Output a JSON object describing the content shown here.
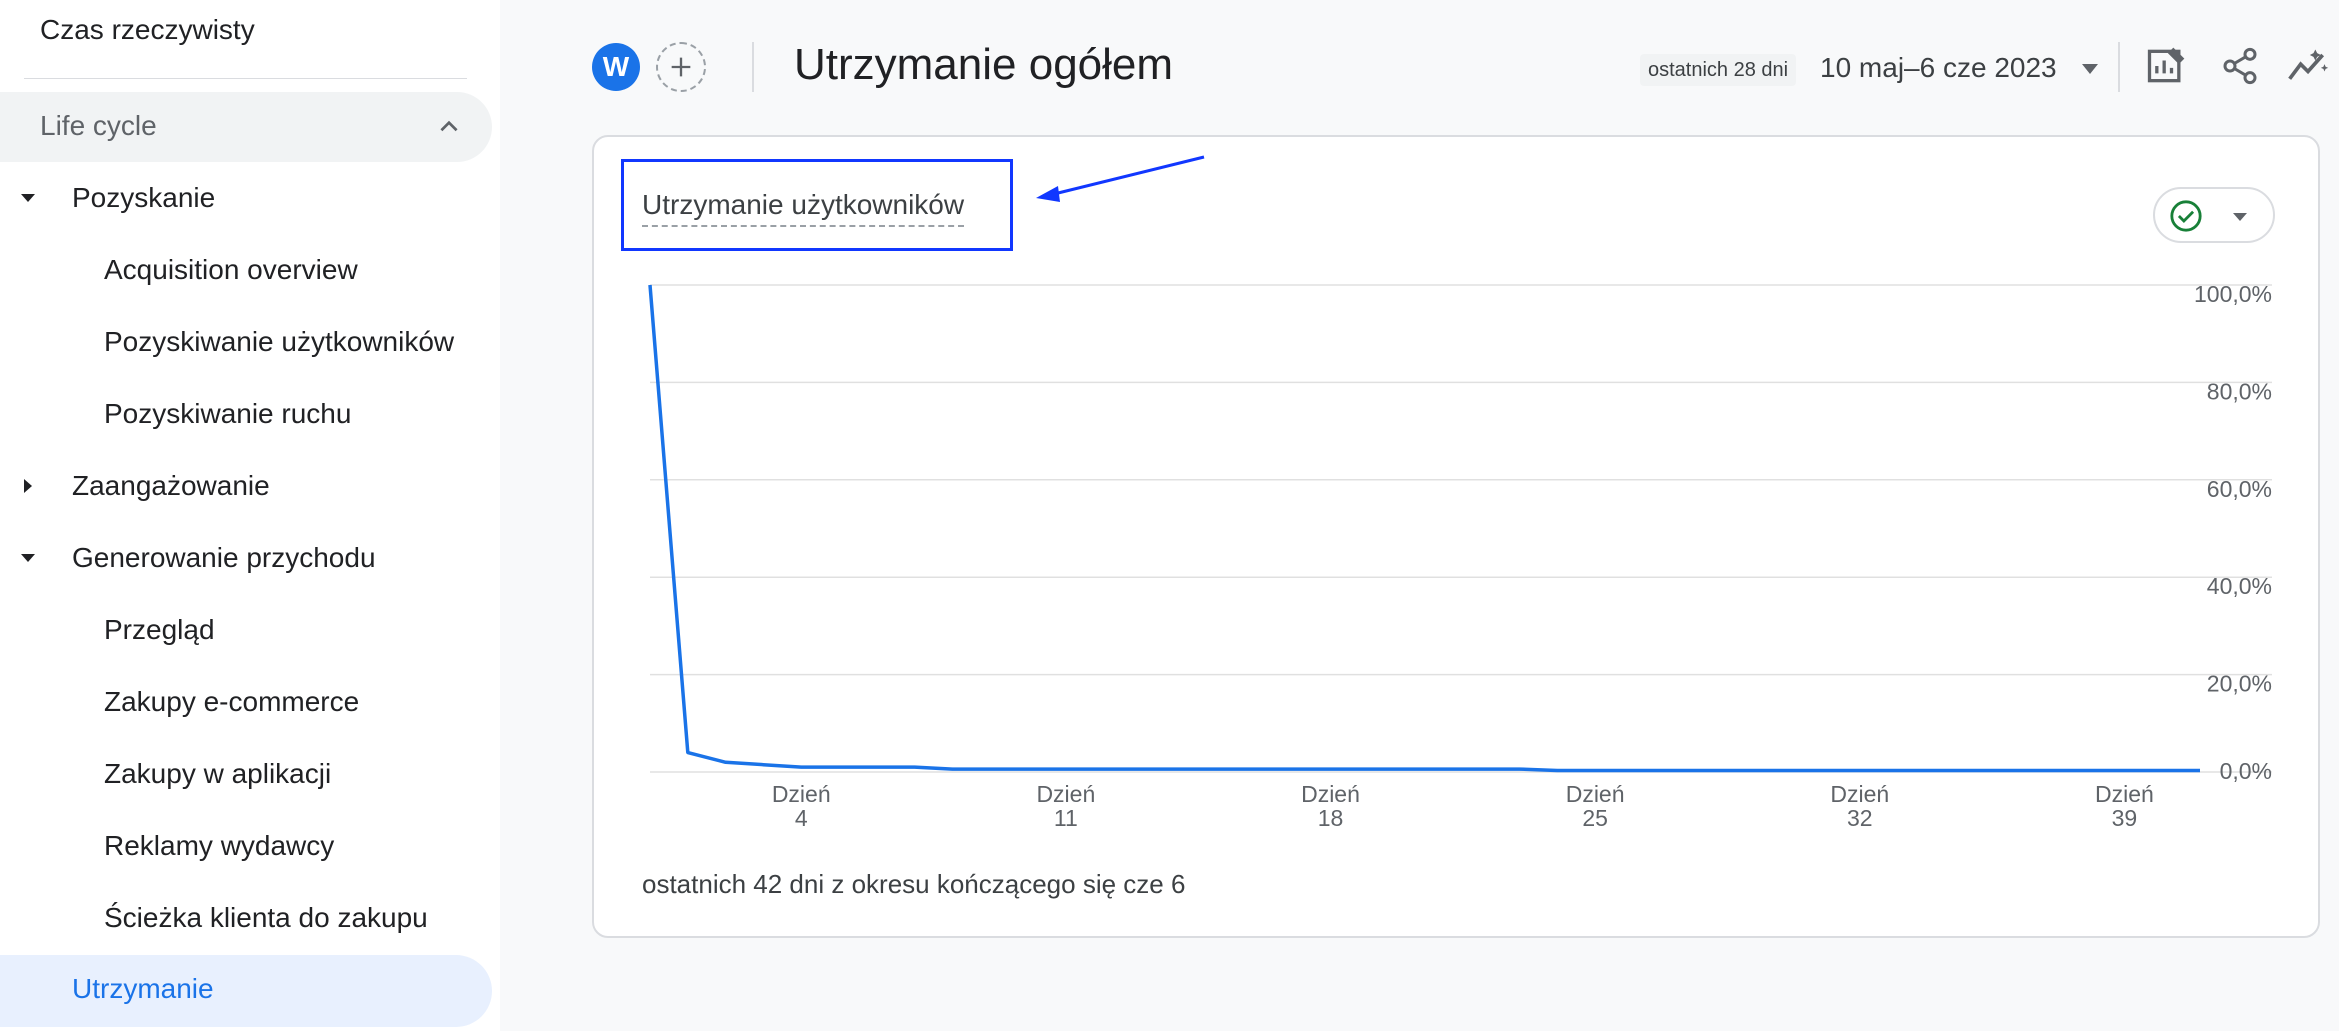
{
  "sidebar": {
    "top_item": "Czas rzeczywisty",
    "section": {
      "label": "Life cycle"
    },
    "items": [
      {
        "label": "Pozyskanie",
        "level": 1,
        "caret": "down"
      },
      {
        "label": "Acquisition overview",
        "level": 2
      },
      {
        "label": "Pozyskiwanie użytkowników",
        "level": 2
      },
      {
        "label": "Pozyskiwanie ruchu",
        "level": 2
      },
      {
        "label": "Zaangażowanie",
        "level": 1,
        "caret": "right"
      },
      {
        "label": "Generowanie przychodu",
        "level": 1,
        "caret": "down"
      },
      {
        "label": "Przegląd",
        "level": 2
      },
      {
        "label": "Zakupy e-commerce",
        "level": 2
      },
      {
        "label": "Zakupy w aplikacji",
        "level": 2
      },
      {
        "label": "Reklamy wydawcy",
        "level": 2
      },
      {
        "label": "Ścieżka klienta do zakupu",
        "level": 2
      }
    ],
    "active_item": "Utrzymanie"
  },
  "header": {
    "avatar_letter": "W",
    "title": "Utrzymanie ogółem",
    "date_chip": "ostatnich 28 dni",
    "date_range": "10 maj–6 cze 2023",
    "icons": [
      "customize-report-icon",
      "share-icon",
      "insights-icon"
    ]
  },
  "card": {
    "title": "Utrzymanie użytkowników",
    "footer": "ostatnich 42 dni z okresu kończącego się cze 6"
  },
  "chart_data": {
    "type": "line",
    "title": "Utrzymanie użytkowników",
    "y_ticks": [
      "100,0%",
      "80,0%",
      "60,0%",
      "40,0%",
      "20,0%",
      "0,0%"
    ],
    "ylim": [
      0,
      100
    ],
    "x_ticks": [
      {
        "line1": "Dzień",
        "line2": "4",
        "day": 4
      },
      {
        "line1": "Dzień",
        "line2": "11",
        "day": 11
      },
      {
        "line1": "Dzień",
        "line2": "18",
        "day": 18
      },
      {
        "line1": "Dzień",
        "line2": "25",
        "day": 25
      },
      {
        "line1": "Dzień",
        "line2": "32",
        "day": 32
      },
      {
        "line1": "Dzień",
        "line2": "39",
        "day": 39
      }
    ],
    "xlim": [
      0,
      41
    ],
    "series": [
      {
        "color": "#1a73e8",
        "x": [
          0,
          1,
          2,
          3,
          4,
          5,
          6,
          7,
          8,
          9,
          10,
          11,
          12,
          13,
          14,
          15,
          16,
          17,
          18,
          19,
          20,
          21,
          22,
          23,
          24,
          25,
          26,
          27,
          28,
          29,
          30,
          31,
          32,
          33,
          34,
          35,
          36,
          37,
          38,
          39,
          40,
          41
        ],
        "values": [
          100,
          4,
          2,
          1.5,
          1,
          1,
          1,
          1,
          0.6,
          0.6,
          0.6,
          0.6,
          0.6,
          0.6,
          0.6,
          0.6,
          0.6,
          0.6,
          0.6,
          0.6,
          0.6,
          0.6,
          0.6,
          0.6,
          0.3,
          0.3,
          0.3,
          0.3,
          0.3,
          0.3,
          0.3,
          0.3,
          0.3,
          0.3,
          0.3,
          0.3,
          0.3,
          0.3,
          0.3,
          0.3,
          0.3,
          0.3
        ]
      }
    ],
    "grid": true
  }
}
